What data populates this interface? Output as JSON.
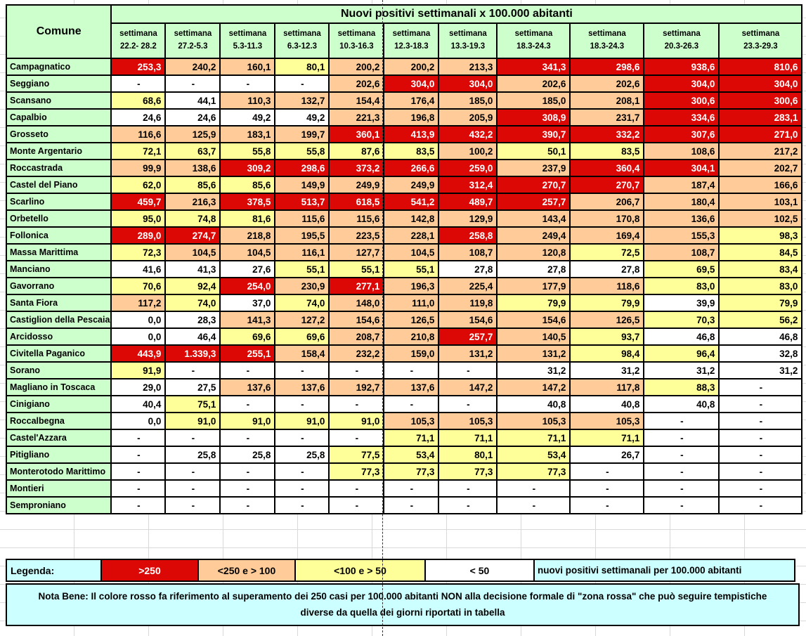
{
  "palette": {
    "r": "#DC0806",
    "o": "#FFCC99",
    "y": "#FFFF99",
    "w": "#FFFFFF",
    "green": "#CCFFCC",
    "cyan": "#CCFFFF"
  },
  "table": {
    "title": "Nuovi positivi settimanali x 100.000 abitanti",
    "corner_label": "Comune",
    "week_label": "settimana",
    "weeks": [
      "22.2- 28.2",
      "27.2-5.3",
      "5.3-11.3",
      "6.3-12.3",
      "10.3-16.3",
      "12.3-18.3",
      "13.3-19.3",
      "18.3-24.3",
      "18.3-24.3",
      "20.3-26.3",
      "23.3-29.3"
    ],
    "rows": [
      {
        "comune": "Campagnatico",
        "values": [
          "253,3",
          "240,2",
          "160,1",
          "80,1",
          "200,2",
          "200,2",
          "213,3",
          "341,3",
          "298,6",
          "938,6",
          "810,6"
        ],
        "colors": "rooyooorrrr"
      },
      {
        "comune": "Seggiano",
        "values": [
          "-",
          "-",
          "-",
          "-",
          "202,6",
          "304,0",
          "304,0",
          "202,6",
          "202,6",
          "304,0",
          "304,0"
        ],
        "colors": "wwwworroorr"
      },
      {
        "comune": "Scansano",
        "values": [
          "68,6",
          "44,1",
          "110,3",
          "132,7",
          "154,4",
          "176,4",
          "185,0",
          "185,0",
          "208,1",
          "300,6",
          "300,6"
        ],
        "colors": "ywooooooorr"
      },
      {
        "comune": "Capalbio",
        "values": [
          "24,6",
          "24,6",
          "49,2",
          "49,2",
          "221,3",
          "196,8",
          "205,9",
          "308,9",
          "231,7",
          "334,6",
          "283,1"
        ],
        "colors": "wwwwooororr"
      },
      {
        "comune": "Grosseto",
        "values": [
          "116,6",
          "125,9",
          "183,1",
          "199,7",
          "360,1",
          "413,9",
          "432,2",
          "390,7",
          "332,2",
          "307,6",
          "271,0"
        ],
        "colors": "oooorrrrrrr"
      },
      {
        "comune": "Monte Argentario",
        "values": [
          "72,1",
          "63,7",
          "55,8",
          "55,8",
          "87,6",
          "83,5",
          "100,2",
          "50,1",
          "83,5",
          "108,6",
          "217,2"
        ],
        "colors": "yyyyyyoyyoo"
      },
      {
        "comune": "Roccastrada",
        "values": [
          "99,9",
          "138,6",
          "309,2",
          "298,6",
          "373,2",
          "266,6",
          "259,0",
          "237,9",
          "360,4",
          "304,1",
          "202,7"
        ],
        "colors": "oorrrrrorro"
      },
      {
        "comune": "Castel del Piano",
        "values": [
          "62,0",
          "85,6",
          "85,6",
          "149,9",
          "249,9",
          "249,9",
          "312,4",
          "270,7",
          "270,7",
          "187,4",
          "166,6"
        ],
        "colors": "yyyooorrroo"
      },
      {
        "comune": "Scarlino",
        "values": [
          "459,7",
          "216,3",
          "378,5",
          "513,7",
          "618,5",
          "541,2",
          "489,7",
          "257,7",
          "206,7",
          "180,4",
          "103,1"
        ],
        "colors": "rorrrrrrooo"
      },
      {
        "comune": "Orbetello",
        "values": [
          "95,0",
          "74,8",
          "81,6",
          "115,6",
          "115,6",
          "142,8",
          "129,9",
          "143,4",
          "170,8",
          "136,6",
          "102,5"
        ],
        "colors": "yyyoooooooo"
      },
      {
        "comune": "Follonica",
        "values": [
          "289,0",
          "274,7",
          "218,8",
          "195,5",
          "223,5",
          "228,1",
          "258,8",
          "249,4",
          "169,4",
          "155,3",
          "98,3"
        ],
        "colors": "rrooooroooy"
      },
      {
        "comune": "Massa Marittima",
        "values": [
          "72,3",
          "104,5",
          "104,5",
          "116,1",
          "127,7",
          "104,5",
          "108,7",
          "120,8",
          "72,5",
          "108,7",
          "84,5"
        ],
        "colors": "yoooooooyoy"
      },
      {
        "comune": "Manciano",
        "values": [
          "41,6",
          "41,3",
          "27,6",
          "55,1",
          "55,1",
          "55,1",
          "27,8",
          "27,8",
          "27,8",
          "69,5",
          "83,4"
        ],
        "colors": "wwwyyywwwyy"
      },
      {
        "comune": "Gavorrano",
        "values": [
          "70,6",
          "92,4",
          "254,0",
          "230,9",
          "277,1",
          "196,3",
          "225,4",
          "177,9",
          "118,6",
          "83,0",
          "83,0"
        ],
        "colors": "yyrorooooyy"
      },
      {
        "comune": "Santa Fiora",
        "values": [
          "117,2",
          "74,0",
          "37,0",
          "74,0",
          "148,0",
          "111,0",
          "119,8",
          "79,9",
          "79,9",
          "39,9",
          "79,9"
        ],
        "colors": "oywyoooyywy"
      },
      {
        "comune": "Castiglion della Pescaia",
        "values": [
          "0,0",
          "28,3",
          "141,3",
          "127,2",
          "154,6",
          "126,5",
          "154,6",
          "154,6",
          "126,5",
          "70,3",
          "56,2"
        ],
        "colors": "wwoooooooyy"
      },
      {
        "comune": "Arcidosso",
        "values": [
          "0,0",
          "46,4",
          "69,6",
          "69,6",
          "208,7",
          "210,8",
          "257,7",
          "140,5",
          "93,7",
          "46,8",
          "46,8"
        ],
        "colors": "wwyyooroyww"
      },
      {
        "comune": "Civitella Paganico",
        "values": [
          "443,9",
          "1.339,3",
          "255,1",
          "158,4",
          "232,2",
          "159,0",
          "131,2",
          "131,2",
          "98,4",
          "96,4",
          "32,8"
        ],
        "colors": "rrroooooyyw"
      },
      {
        "comune": "Sorano",
        "values": [
          "91,9",
          "-",
          "-",
          "-",
          "-",
          "-",
          "-",
          "31,2",
          "31,2",
          "31,2",
          "31,2"
        ],
        "colors": "ywwwwwwwwww"
      },
      {
        "comune": "Magliano in Toscaca",
        "values": [
          "29,0",
          "27,5",
          "137,6",
          "137,6",
          "192,7",
          "137,6",
          "147,2",
          "147,2",
          "117,8",
          "88,3",
          "-"
        ],
        "colors": "wwoooooooyw"
      },
      {
        "comune": "Cinigiano",
        "values": [
          "40,4",
          "75,1",
          "-",
          "-",
          "-",
          "-",
          "-",
          "40,8",
          "40,8",
          "40,8",
          "-"
        ],
        "colors": "wywwwwwwwww"
      },
      {
        "comune": "Roccalbegna",
        "values": [
          "0,0",
          "91,0",
          "91,0",
          "91,0",
          "91,0",
          "105,3",
          "105,3",
          "105,3",
          "105,3",
          "-",
          "-"
        ],
        "colors": "wyyyyooooww"
      },
      {
        "comune": "Castel'Azzara",
        "values": [
          "-",
          "-",
          "-",
          "-",
          "-",
          "71,1",
          "71,1",
          "71,1",
          "71,1",
          "-",
          "-"
        ],
        "colors": "wwwwwyyyyww"
      },
      {
        "comune": "Pitigliano",
        "values": [
          "-",
          "25,8",
          "25,8",
          "25,8",
          "77,5",
          "53,4",
          "80,1",
          "53,4",
          "26,7",
          "-",
          "-"
        ],
        "colors": "wwwwyyyywww"
      },
      {
        "comune": "Monterotodo Marittimo",
        "values": [
          "-",
          "-",
          "-",
          "-",
          "77,3",
          "77,3",
          "77,3",
          "77,3",
          "-",
          "-",
          "-"
        ],
        "colors": "wwwwyyyywww"
      },
      {
        "comune": "Montieri",
        "values": [
          "-",
          "-",
          "-",
          "-",
          "-",
          "-",
          "-",
          "-",
          "-",
          "-",
          "-"
        ],
        "colors": "wwwwwwwwwww"
      },
      {
        "comune": "Semproniano",
        "values": [
          "-",
          "-",
          "-",
          "-",
          "-",
          "-",
          "-",
          "-",
          "-",
          "-",
          "-"
        ],
        "colors": "wwwwwwwwwww"
      }
    ]
  },
  "legend": {
    "label": "Legenda:",
    "items": [
      {
        "text": ">250",
        "color": "r"
      },
      {
        "text": "<250 e > 100",
        "color": "o"
      },
      {
        "text": "<100 e > 50",
        "color": "y"
      },
      {
        "text": "< 50",
        "color": "w"
      }
    ],
    "note": "nuovi positivi settimanali per 100.000 abitanti"
  },
  "nota_bene": "Nota Bene: Il colore rosso fa riferimento al superamento dei 250 casi per 100.000 abitanti NON alla decisione formale di \"zona rossa\" che può seguire tempistiche diverse da quella dei giorni riportati in tabella"
}
